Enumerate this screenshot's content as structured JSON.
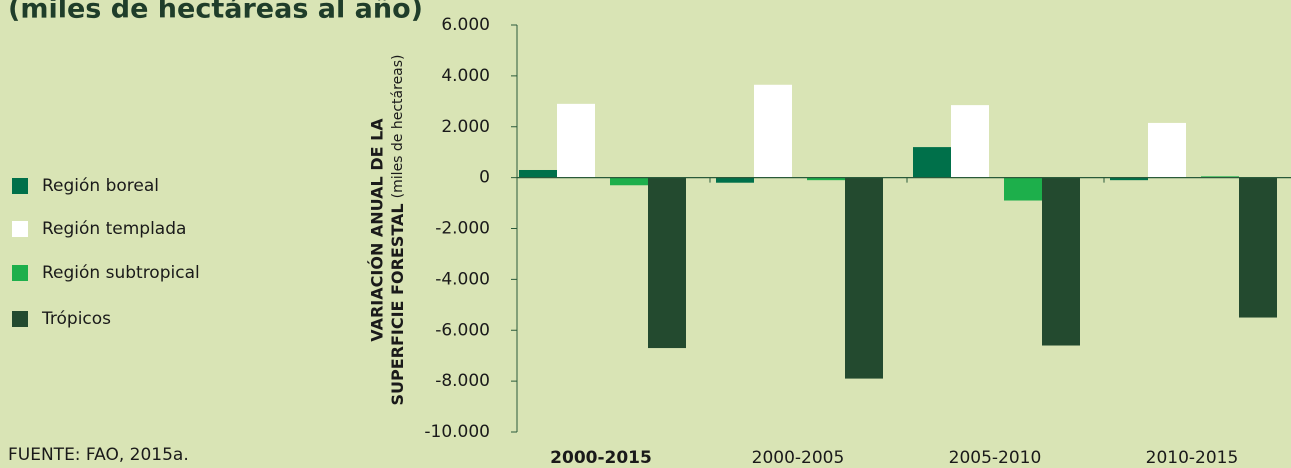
{
  "chart_data": {
    "type": "bar",
    "title": "(miles de hectáreas al año)",
    "ylabel": [
      "VARIACIÓN ANUAL DE LA",
      "SUPERFICIE FORESTAL",
      "(miles de hectáreas)"
    ],
    "source": "FUENTE: FAO, 2015a.",
    "categories": [
      "2000-2015",
      "2000-2005",
      "2005-2010",
      "2010-2015"
    ],
    "series": [
      {
        "name": "Región boreal",
        "color": "#00704a",
        "values": [
          300,
          -200,
          1200,
          -100
        ]
      },
      {
        "name": "Región templada",
        "color": "#ffffff",
        "values": [
          2900,
          3650,
          2850,
          2150
        ]
      },
      {
        "name": "Región subtropical",
        "color": "#1daf4b",
        "values": [
          -300,
          -100,
          -900,
          50
        ]
      },
      {
        "name": "Trópicos",
        "color": "#234a2f",
        "values": [
          -6700,
          -7900,
          -6600,
          -5500
        ]
      }
    ],
    "ylim": [
      -10000,
      6000
    ],
    "yticks": [
      {
        "value": -10000,
        "label": "-10.000"
      },
      {
        "value": -8000,
        "label": "-8.000"
      },
      {
        "value": -6000,
        "label": "-6.000"
      },
      {
        "value": -4000,
        "label": "-4.000"
      },
      {
        "value": -2000,
        "label": "-2.000"
      },
      0,
      {
        "value": 2000,
        "label": "2.000"
      },
      {
        "value": 4000,
        "label": "4.000"
      },
      {
        "value": 6000,
        "label": "6.000"
      }
    ],
    "legend": "left"
  }
}
